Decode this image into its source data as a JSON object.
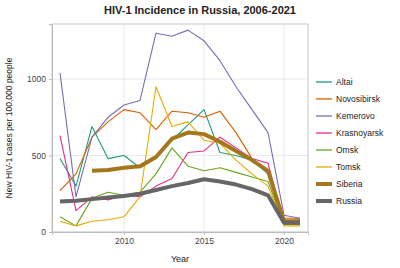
{
  "chart_data": {
    "type": "line",
    "title": "HIV-1 Incidence in Russia, 2006-2021",
    "x_label": "Year",
    "y_label": "New HIV-1 cases per 100,000 people",
    "x": [
      2006,
      2007,
      2008,
      2009,
      2010,
      2011,
      2012,
      2013,
      2014,
      2015,
      2016,
      2017,
      2018,
      2019,
      2020,
      2021
    ],
    "xlim": [
      2005.5,
      2021.5
    ],
    "xticks": [
      2010,
      2015,
      2020
    ],
    "ylim": [
      0,
      1360
    ],
    "yticks": [
      0,
      500,
      1000
    ],
    "grid": true,
    "legend": "right",
    "series": [
      {
        "name": "Altai",
        "color": "#1b9e77",
        "line_style": "solid",
        "values": [
          480,
          300,
          690,
          480,
          500,
          420,
          480,
          600,
          700,
          800,
          520,
          500,
          470,
          380,
          70,
          80
        ]
      },
      {
        "name": "Novosibirsk",
        "color": "#d95f02",
        "line_style": "solid",
        "values": [
          270,
          380,
          620,
          720,
          800,
          780,
          670,
          790,
          780,
          750,
          790,
          650,
          480,
          400,
          90,
          90
        ]
      },
      {
        "name": "Kemerovo",
        "color": "#7570b3",
        "line_style": "solid",
        "values": [
          1040,
          230,
          620,
          750,
          830,
          860,
          1300,
          1280,
          1320,
          1250,
          1120,
          950,
          800,
          650,
          110,
          90
        ]
      },
      {
        "name": "Krasnoyarsk",
        "color": "#e7298a",
        "line_style": "solid",
        "values": [
          630,
          140,
          230,
          210,
          240,
          230,
          300,
          350,
          520,
          530,
          620,
          550,
          480,
          450,
          60,
          60
        ]
      },
      {
        "name": "Omsk",
        "color": "#66a61e",
        "line_style": "solid",
        "values": [
          100,
          40,
          220,
          260,
          240,
          260,
          380,
          550,
          430,
          400,
          420,
          390,
          360,
          330,
          50,
          50
        ]
      },
      {
        "name": "Tomsk",
        "color": "#e6ab02",
        "line_style": "solid",
        "values": [
          70,
          40,
          70,
          80,
          100,
          230,
          950,
          690,
          720,
          600,
          580,
          470,
          380,
          300,
          40,
          40
        ]
      },
      {
        "name": "Siberia",
        "color": "#a6761d",
        "line_style": "bold",
        "values": [
          null,
          null,
          400,
          405,
          420,
          430,
          490,
          610,
          650,
          640,
          590,
          530,
          470,
          400,
          70,
          70
        ]
      },
      {
        "name": "Russia",
        "color": "#666666",
        "line_style": "bold",
        "values": [
          200,
          205,
          215,
          225,
          235,
          250,
          275,
          300,
          320,
          345,
          330,
          310,
          280,
          240,
          60,
          60
        ]
      }
    ]
  }
}
